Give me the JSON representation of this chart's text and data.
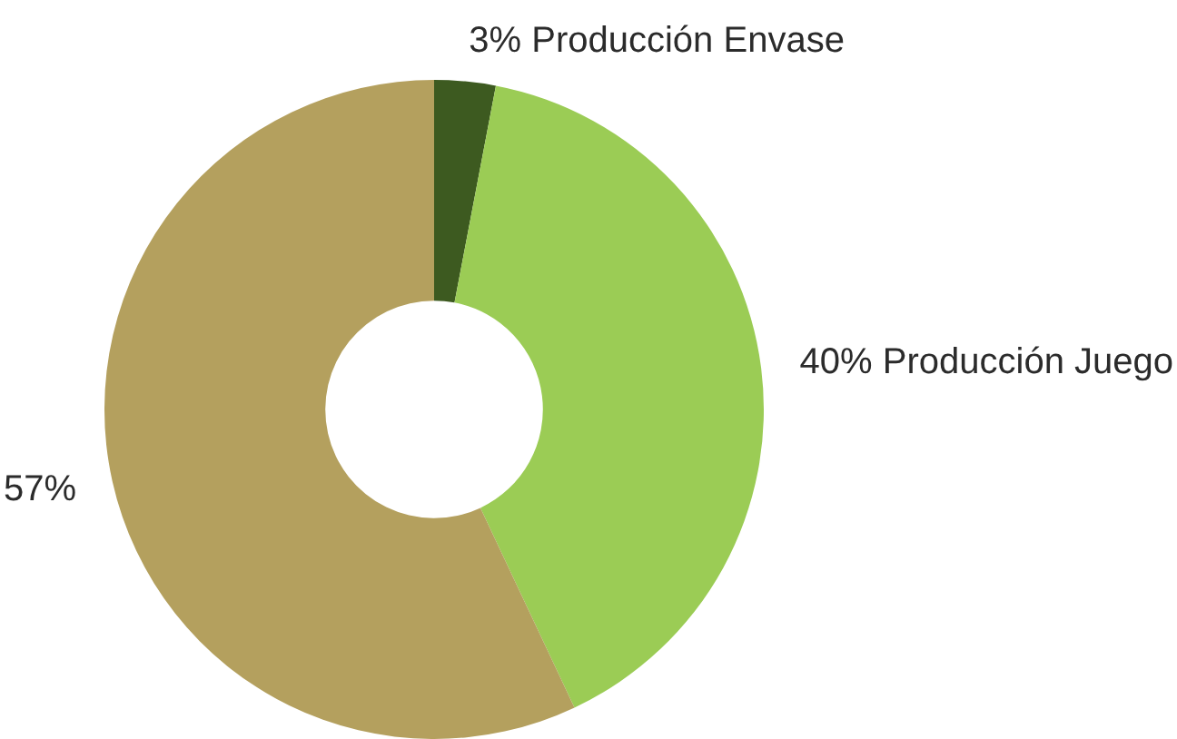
{
  "chart_data": {
    "type": "donut",
    "categories": [
      "Producción Envase",
      "Producción Juego",
      null
    ],
    "values": [
      3,
      40,
      57
    ],
    "colors": [
      "#3d5a20",
      "#9bcc55",
      "#b4a05e"
    ],
    "value_labels": [
      "3%",
      "40%",
      "57%"
    ],
    "legend": false
  }
}
